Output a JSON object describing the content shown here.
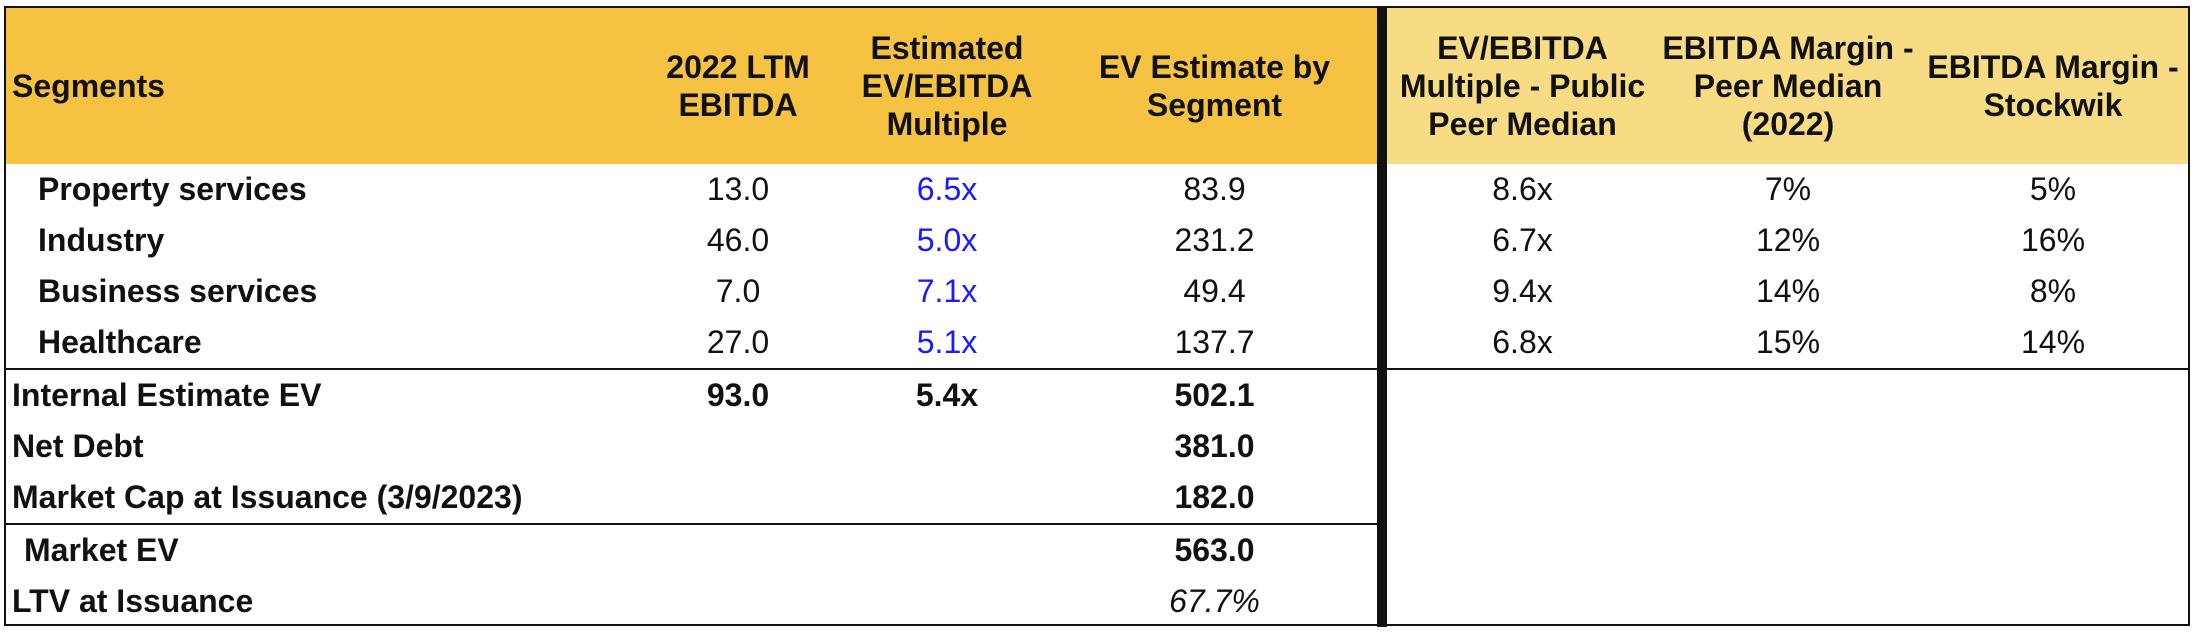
{
  "headers": {
    "segments": "Segments",
    "ltm_ebitda": "2022 LTM EBITDA",
    "est_multiple": "Estimated EV/EBITDA Multiple",
    "ev_estimate": "EV Estimate by Segment",
    "peer_multiple": "EV/EBITDA Multiple - Public Peer Median",
    "peer_margin": "EBITDA Margin - Peer Median (2022)",
    "stockwik_margin": "EBITDA Margin - Stockwik"
  },
  "segments": [
    {
      "name": "Property services",
      "ltm_ebitda": "13.0",
      "multiple": "6.5x",
      "ev": "83.9",
      "peer_multiple": "8.6x",
      "peer_margin": "7%",
      "stockwik_margin": "5%"
    },
    {
      "name": "Industry",
      "ltm_ebitda": "46.0",
      "multiple": "5.0x",
      "ev": "231.2",
      "peer_multiple": "6.7x",
      "peer_margin": "12%",
      "stockwik_margin": "16%"
    },
    {
      "name": "Business services",
      "ltm_ebitda": "7.0",
      "multiple": "7.1x",
      "ev": "49.4",
      "peer_multiple": "9.4x",
      "peer_margin": "14%",
      "stockwik_margin": "8%"
    },
    {
      "name": "Healthcare",
      "ltm_ebitda": "27.0",
      "multiple": "5.1x",
      "ev": "137.7",
      "peer_multiple": "6.8x",
      "peer_margin": "15%",
      "stockwik_margin": "14%"
    }
  ],
  "summary": {
    "internal_ev": {
      "label": "Internal Estimate EV",
      "ltm_ebitda": "93.0",
      "multiple": "5.4x",
      "ev": "502.1"
    },
    "net_debt": {
      "label": "Net Debt",
      "ev": "381.0"
    },
    "market_cap": {
      "label": "Market Cap at Issuance (3/9/2023)",
      "ev": "182.0"
    },
    "market_ev": {
      "label": "Market EV",
      "ev": "563.0"
    },
    "ltv": {
      "label": "LTV at Issuance",
      "ev": "67.7%"
    }
  },
  "colors": {
    "header_left": "#F5C242",
    "header_right": "#F7DC84",
    "multiple_text": "#1a1aff"
  }
}
